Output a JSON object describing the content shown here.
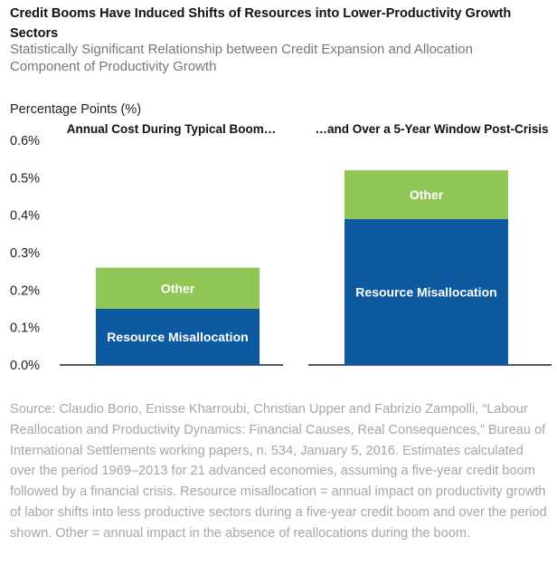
{
  "title": "Credit Booms Have Induced Shifts of Resources into Lower-Productivity Growth Sectors",
  "subtitle": "Statistically Significant Relationship between Credit Expansion and Allocation Component of Productivity Growth",
  "source": "Source: Claudio Borio, Enisse Kharroubi, Christian Upper and Fabrizio Zampolli, “Labour Reallocation and Productivity Dynamics: Financial Causes, Real Consequences,” Bureau of International Settlements working papers, n. 534, January 5, 2016. Estimates calculated over the period 1969–2013 for 21 advanced economies, assuming a five-year credit boom followed by a financial crisis. Resource misallocation = annual impact on productivity growth of labor shifts into less productive sectors during a five-year credit boom and over the period shown. Other = annual impact in the absence of reallocations during the boom.",
  "colors": {
    "resource_misallocation": "#0d5aa0",
    "other": "#8fc655",
    "axis": "#222222"
  },
  "chart_data": {
    "type": "bar",
    "stacked": true,
    "ylabel": "Percentage Points (%)",
    "ylim": [
      0,
      0.6
    ],
    "yticks": [
      0.0,
      0.1,
      0.2,
      0.3,
      0.4,
      0.5,
      0.6
    ],
    "ytick_labels": [
      "0.0%",
      "0.1%",
      "0.2%",
      "0.3%",
      "0.4%",
      "0.5%",
      "0.6%"
    ],
    "grid": false,
    "categories": [
      "Annual Cost During Typical Boom…",
      "…and Over a 5-Year Window Post-Crisis"
    ],
    "series": [
      {
        "name": "Resource Misallocation",
        "values": [
          0.15,
          0.39
        ]
      },
      {
        "name": "Other",
        "values": [
          0.11,
          0.13
        ]
      }
    ]
  }
}
